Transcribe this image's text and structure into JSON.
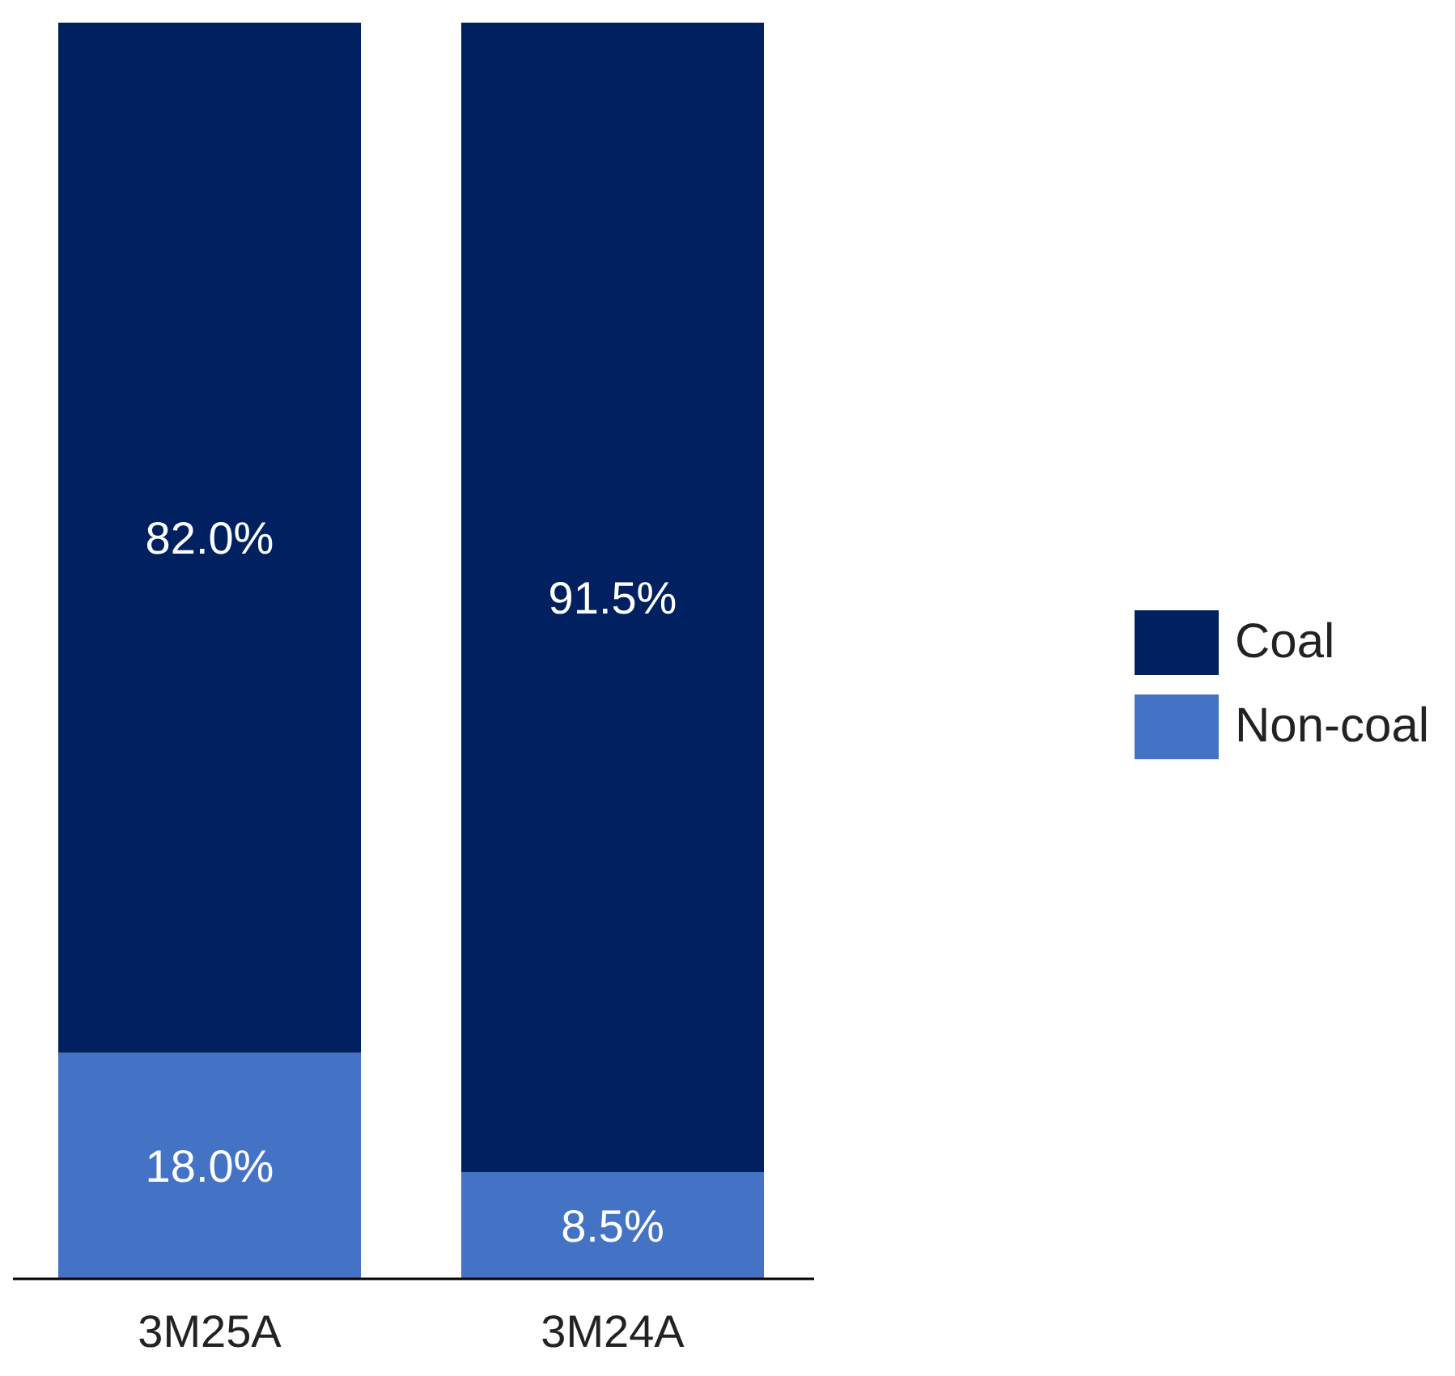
{
  "chart_data": {
    "type": "bar",
    "stacked": true,
    "categories": [
      "3M25A",
      "3M24A"
    ],
    "legend": "right",
    "series": [
      {
        "name": "Non-coal",
        "color": "#4472c4",
        "values": [
          18.0,
          8.5
        ],
        "value_labels": [
          "18.0%",
          "8.5%"
        ]
      },
      {
        "name": "Coal",
        "color": "#002060",
        "values": [
          82.0,
          91.5
        ],
        "value_labels": [
          "82.0%",
          "91.5%"
        ]
      }
    ]
  }
}
